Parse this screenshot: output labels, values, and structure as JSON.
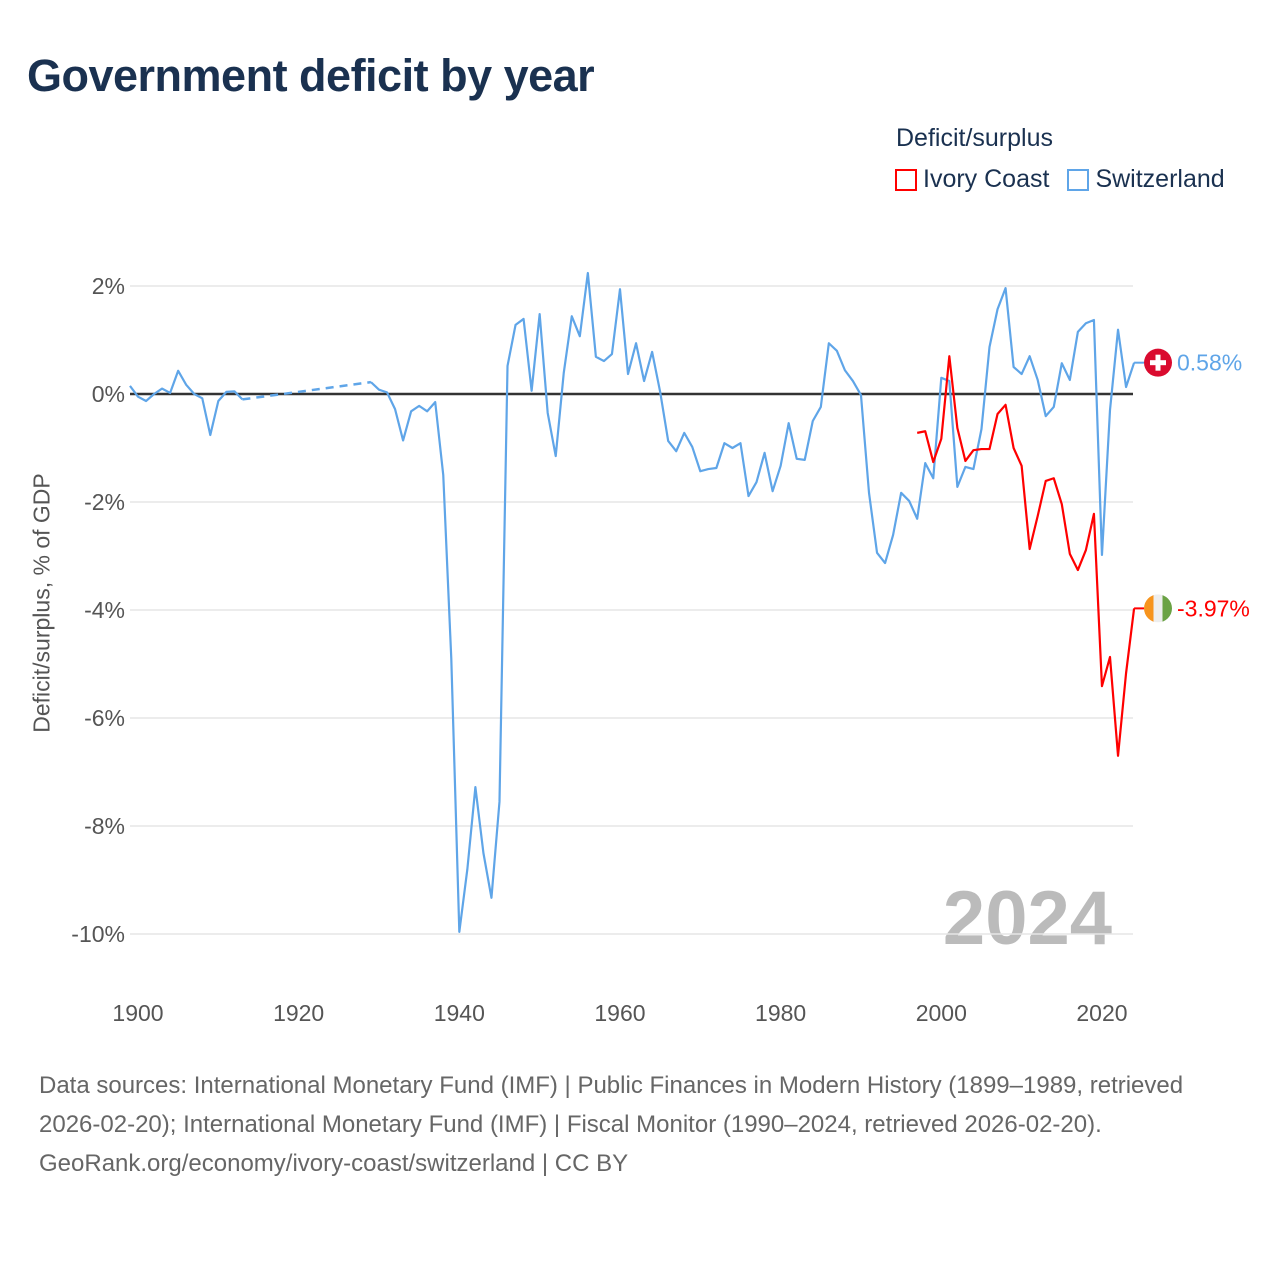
{
  "title": "Government deficit by year",
  "legend": {
    "title": "Deficit/surplus",
    "items": [
      "Ivory Coast",
      "Switzerland"
    ]
  },
  "year_watermark": "2024",
  "footer": {
    "sources": "Data sources: International Monetary Fund (IMF) | Public Finances in Modern History (1899–1989, retrieved 2026-02-20); International Monetary Fund (IMF) | Fiscal Monitor (1990–2024, retrieved 2026-02-20).",
    "attribution": "GeoRank.org/economy/ivory-coast/switzerland | CC BY"
  },
  "chart_data": {
    "type": "line",
    "title": "Government deficit by year",
    "xlabel": "",
    "ylabel": "Deficit/surplus, % of GDP",
    "xlim": [
      1899,
      2024
    ],
    "ylim": [
      -10,
      2
    ],
    "xticks": [
      "1900",
      "1920",
      "1940",
      "1960",
      "1980",
      "2000",
      "2020"
    ],
    "yticks": [
      "2%",
      "0%",
      "-2%",
      "-4%",
      "-6%",
      "-8%",
      "-10%"
    ],
    "grid": true,
    "legend_position": "top-right",
    "series": [
      {
        "name": "Ivory Coast",
        "color": "#ff0000",
        "end_label": "-3.97%",
        "flag": "ivory-coast-flag",
        "start_year": 1997,
        "values": [
          -0.72,
          -0.69,
          -1.26,
          -0.83,
          0.7,
          -0.63,
          -1.24,
          -1.04,
          -1.02,
          -1.02,
          -0.37,
          -0.2,
          -1.0,
          -1.33,
          -2.87,
          -2.26,
          -1.61,
          -1.56,
          -2.04,
          -2.96,
          -3.26,
          -2.89,
          -2.22,
          -5.41,
          -4.87,
          -6.7,
          -5.17,
          -3.97
        ]
      },
      {
        "name": "Switzerland",
        "color": "#5fa5e8",
        "end_label": "0.58%",
        "flag": "switzerland-flag",
        "start_year": 1899,
        "values": [
          0.15,
          -0.05,
          -0.13,
          0.0,
          0.1,
          0.02,
          0.43,
          0.17,
          0.0,
          -0.08,
          -0.76,
          -0.13,
          0.04,
          0.05,
          -0.1,
          null,
          null,
          null,
          null,
          null,
          null,
          null,
          null,
          null,
          null,
          null,
          null,
          null,
          null,
          null,
          0.22,
          0.08,
          0.03,
          -0.28,
          -0.86,
          -0.32,
          -0.22,
          -0.32,
          -0.15,
          -1.5,
          -4.9,
          -9.96,
          -8.8,
          -7.28,
          -8.5,
          -9.33,
          -7.55,
          0.52,
          1.28,
          1.39,
          0.06,
          1.48,
          -0.35,
          -1.15,
          0.39,
          1.44,
          1.07,
          2.24,
          0.69,
          0.61,
          0.74,
          1.94,
          0.37,
          0.94,
          0.24,
          0.78,
          0.04,
          -0.87,
          -1.06,
          -0.72,
          -0.98,
          -1.43,
          -1.39,
          -1.37,
          -0.91,
          -1.0,
          -0.91,
          -1.89,
          -1.63,
          -1.09,
          -1.8,
          -1.33,
          -0.54,
          -1.2,
          -1.22,
          -0.5,
          -0.24,
          0.94,
          0.8,
          0.44,
          0.24,
          -0.02,
          -1.83,
          -2.94,
          -3.13,
          -2.61,
          -1.83,
          -1.98,
          -2.31,
          -1.28,
          -1.56,
          0.3,
          0.24,
          -1.72,
          -1.35,
          -1.39,
          -0.65,
          0.87,
          1.57,
          1.96,
          0.5,
          0.37,
          0.7,
          0.26,
          -0.41,
          -0.24,
          0.57,
          0.26,
          1.15,
          1.31,
          1.37,
          -2.98,
          -0.3,
          1.19,
          0.13,
          0.58
        ]
      }
    ]
  }
}
